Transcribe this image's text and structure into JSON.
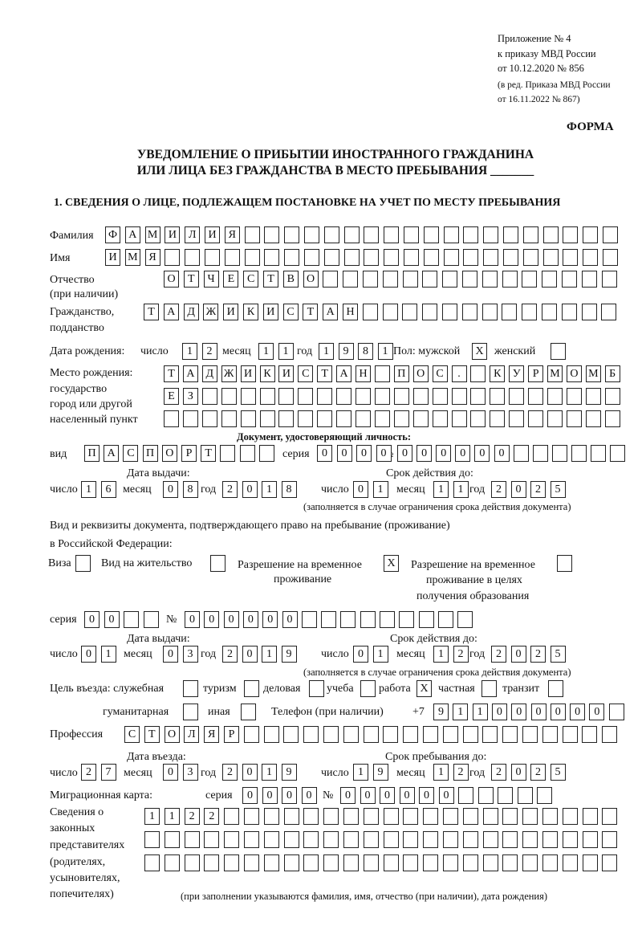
{
  "header": {
    "appendix": [
      "Приложение № 4",
      "к приказу МВД России",
      "от 10.12.2020 № 856"
    ],
    "edition": [
      "(в ред. Приказа МВД России",
      "от 16.11.2022 № 867)"
    ],
    "forma": "ФОРМА",
    "title_line1": "УВЕДОМЛЕНИЕ О ПРИБЫТИИ ИНОСТРАННОГО ГРАЖДАНИНА",
    "title_line2": "ИЛИ ЛИЦА БЕЗ ГРАЖДАНСТВА В МЕСТО ПРЕБЫВАНИЯ _______",
    "section1": "1. СВЕДЕНИЯ О ЛИЦЕ, ПОДЛЕЖАЩЕМ ПОСТАНОВКЕ НА УЧЕТ ПО МЕСТУ ПРЕБЫВАНИЯ"
  },
  "labels": {
    "surname": "Фамилия",
    "name": "Имя",
    "patronymic1": "Отчество",
    "patronymic2": "(при наличии)",
    "citizenship1": "Гражданство,",
    "citizenship2": "подданство",
    "birth_date": "Дата рождения:",
    "day": "число",
    "month": "месяц",
    "year": "год",
    "sex": "Пол: мужской",
    "female": "женский",
    "birth_place1": "Место рождения:",
    "birth_place2": "государство",
    "birth_place3": "город или другой",
    "birth_place4": "населенный пункт",
    "id_doc": "Документ, удостоверяющий личность:",
    "kind": "вид",
    "series": "серия",
    "number": "№",
    "issue_date": "Дата выдачи:",
    "valid_until": "Срок действия до:",
    "validity_note": "(заполняется в случае ограничения срока действия документа)",
    "right_doc1": "Вид и реквизиты документа, подтверждающего право на пребывание (проживание)",
    "right_doc2": "в Российской Федерации:",
    "visa": "Виза",
    "residence": "Вид на жительство",
    "rvp1": "Разрешение на временное",
    "rvp2": "проживание",
    "rvpo1": "Разрешение на временное",
    "rvpo2": "проживание в целях",
    "rvpo3": "получения образования",
    "purpose": "Цель въезда: служебная",
    "tourism": "туризм",
    "business": "деловая",
    "study": "учеба",
    "work": "работа",
    "private": "частная",
    "transit": "транзит",
    "humanitarian": "гуманитарная",
    "other": "иная",
    "phone": "Телефон (при наличии)",
    "phone_prefix": "+7",
    "profession": "Профессия",
    "entry_date": "Дата въезда:",
    "stay_until": "Срок пребывания до:",
    "migration_card": "Миграционная карта:",
    "reps": [
      "Сведения о",
      "законных",
      "представителях",
      "(родителях,",
      "усыновителях,",
      "попечителях)"
    ],
    "reps_note": "(при заполнении указываются фамилия, имя, отчество (при наличии), дата рождения)"
  },
  "values": {
    "surname": "ФАМИЛИЯ",
    "name": "ИМЯ",
    "patronymic": "ОТЧЕСТВО",
    "citizenship": "ТАДЖИКИСТАН",
    "birth_day": "12",
    "birth_month": "11",
    "birth_year": "1981",
    "male": "X",
    "female": "",
    "birth_place_1": "ТАДЖИКИСТАН ПОС. КУРМОМБ",
    "birth_place_2": "ЕЗ",
    "birth_place_3": "",
    "id_kind": "ПАСПОРТ",
    "id_series": "0000",
    "id_number": "000000",
    "id_issue_day": "16",
    "id_issue_month": "08",
    "id_issue_year": "2018",
    "id_valid_day": "01",
    "id_valid_month": "11",
    "id_valid_year": "2025",
    "visa": "",
    "residence": "",
    "rvp": "X",
    "rvpo": "",
    "right_series": "00",
    "right_number": "000000",
    "right_issue_day": "01",
    "right_issue_month": "03",
    "right_issue_year": "2019",
    "right_valid_day": "01",
    "right_valid_month": "12",
    "right_valid_year": "2025",
    "p_official": "",
    "p_tourism": "",
    "p_business": "",
    "p_study": "",
    "p_work": "X",
    "p_private": "",
    "p_transit": "",
    "p_humanitarian": "",
    "p_other": "",
    "phone": "911000000",
    "profession": "СТОЛЯР",
    "entry_day": "27",
    "entry_month": "03",
    "entry_year": "2019",
    "stay_day": "19",
    "stay_month": "12",
    "stay_year": "2025",
    "mc_series": "0000",
    "mc_number": "000000",
    "reps_1": "1122",
    "reps_2": "",
    "reps_3": ""
  }
}
